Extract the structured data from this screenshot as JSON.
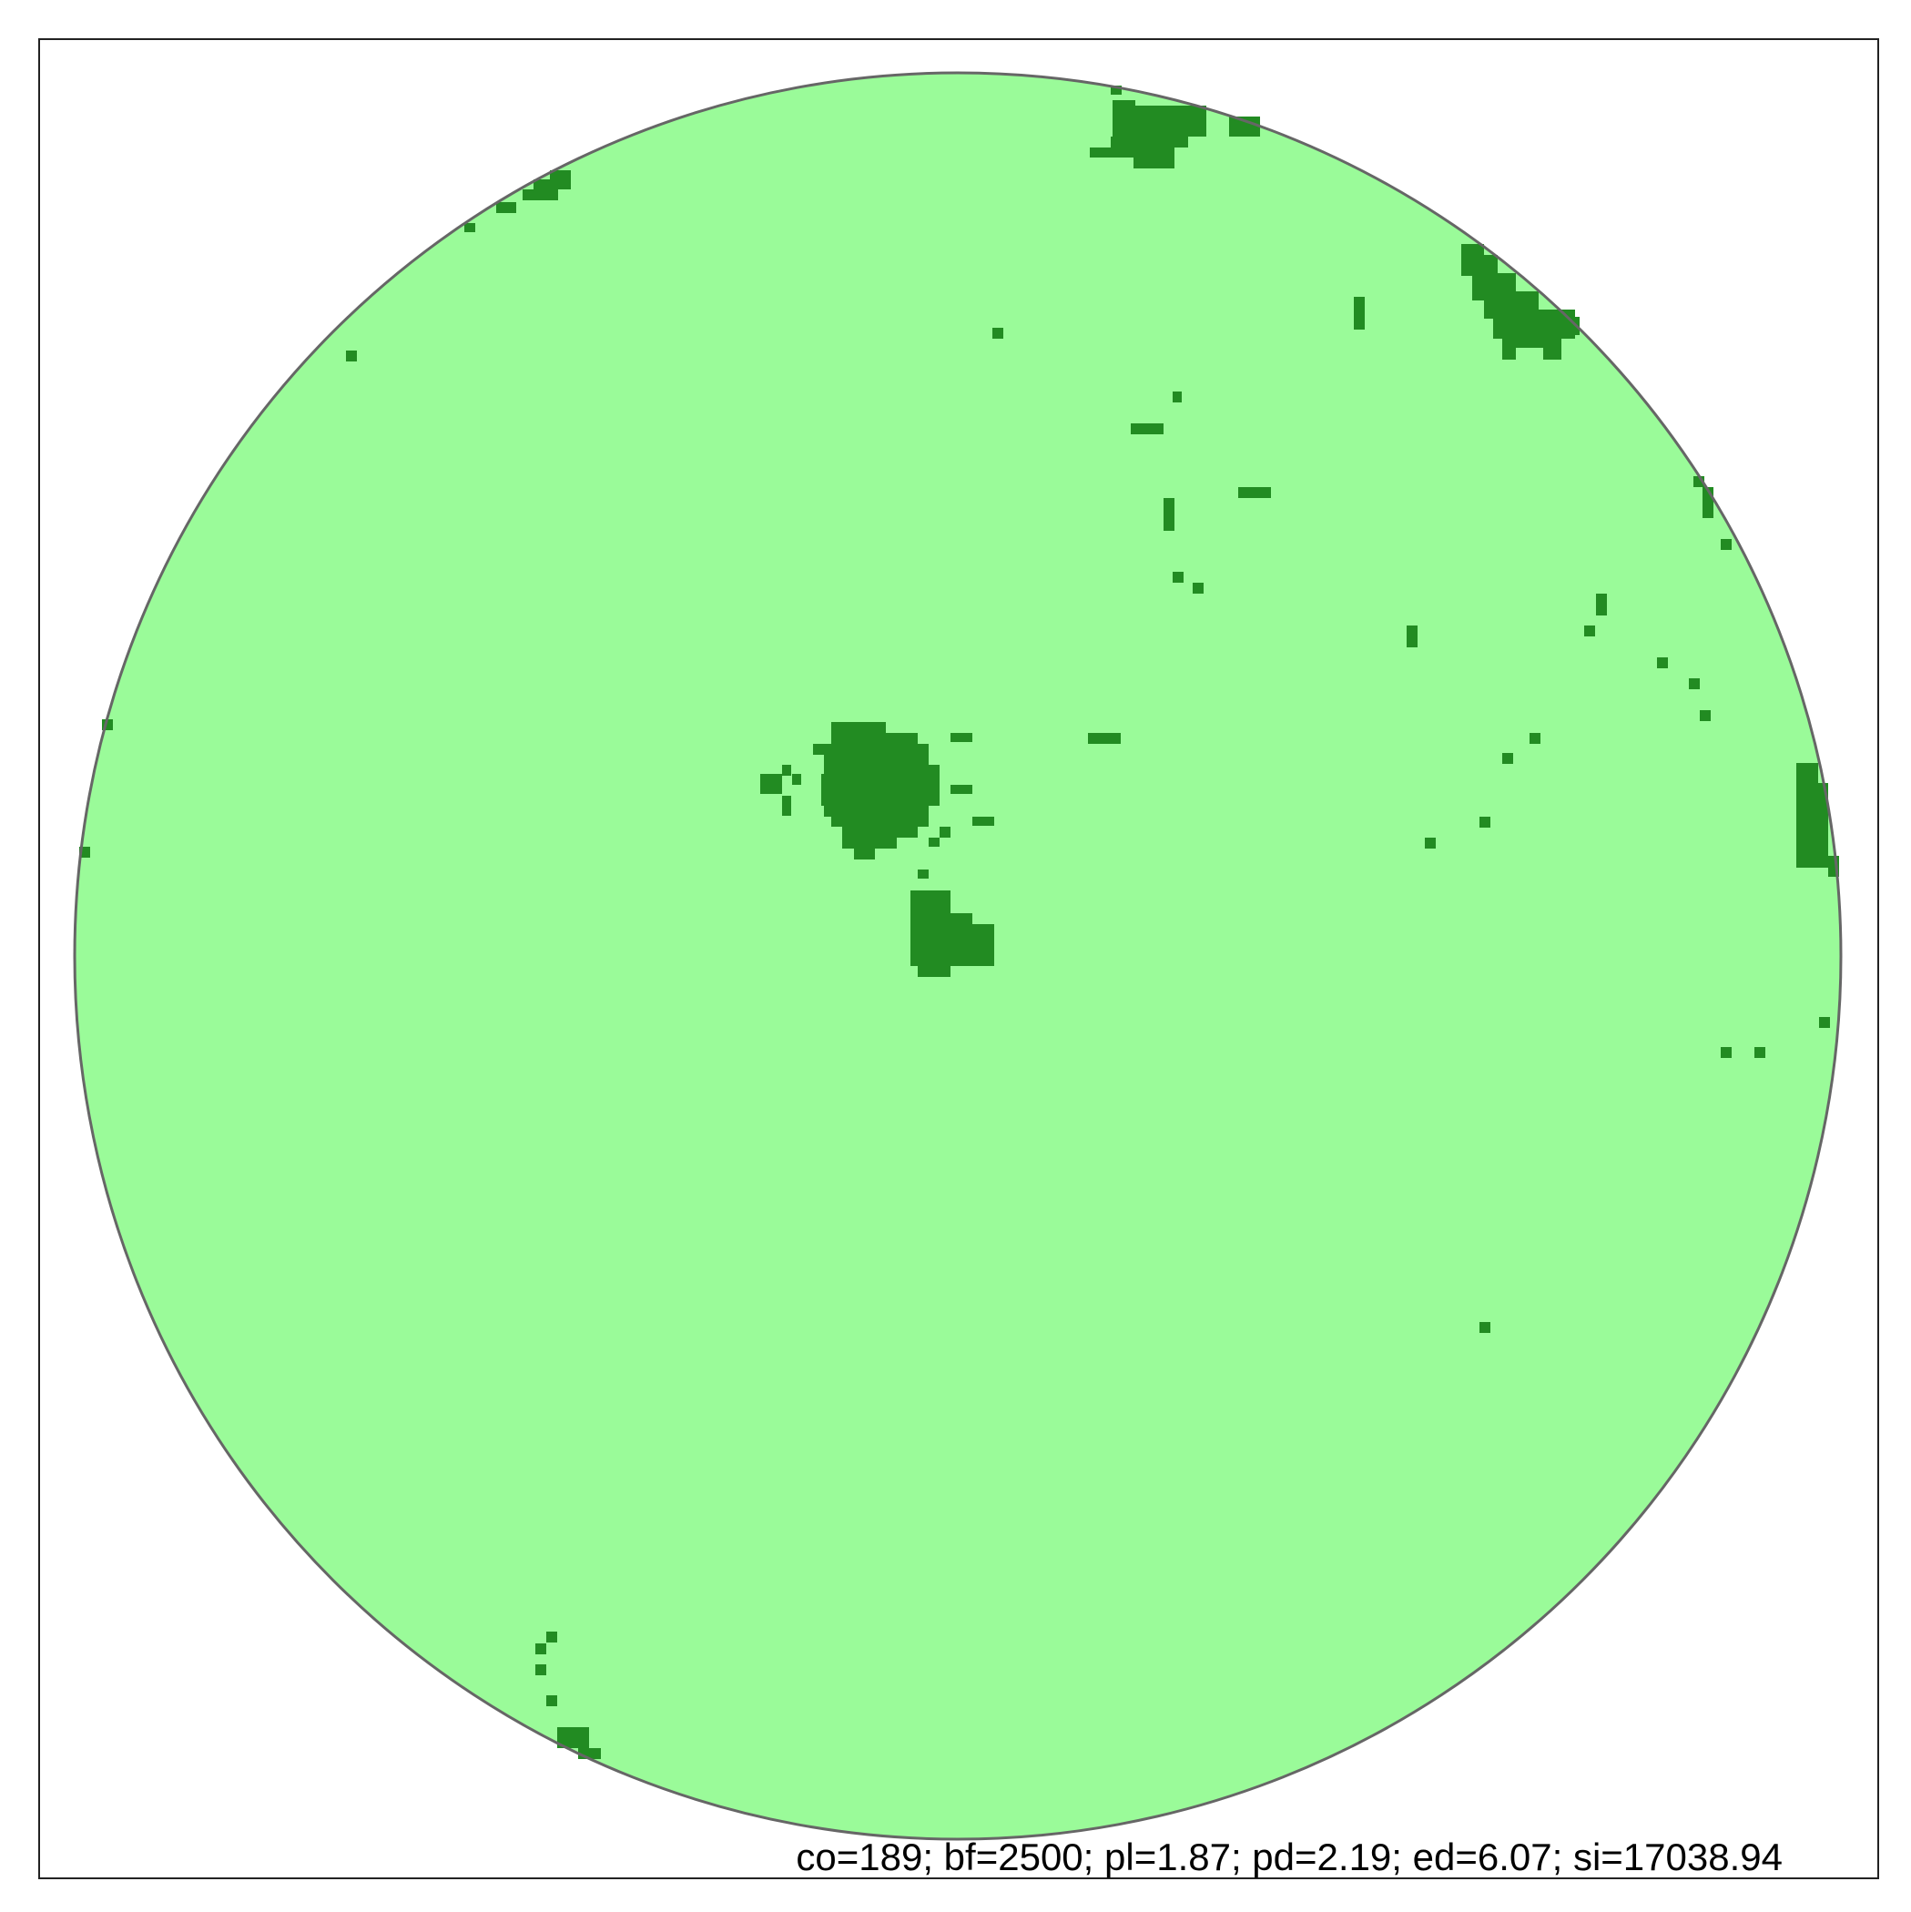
{
  "colors": {
    "background": "#ffffff",
    "frame": "#222222",
    "disk_fill": "#9afb99",
    "disk_outline": "#666666",
    "patch": "#228b22",
    "caption": "#000000"
  },
  "caption": "co=189; bf=2500; pl=1.87; pd=2.19; ed=6.07; si=17038.94"
}
